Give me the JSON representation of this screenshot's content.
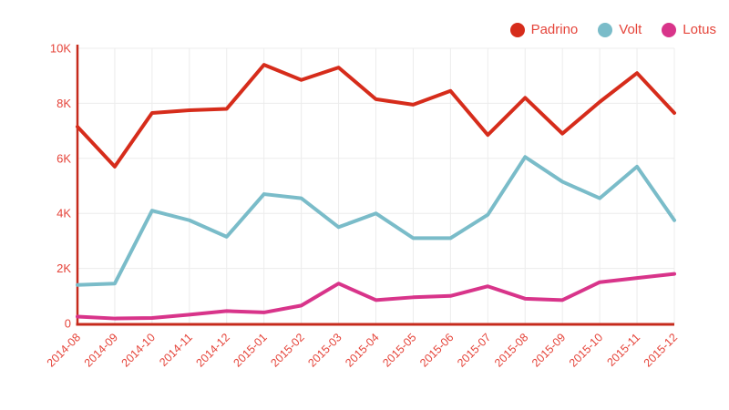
{
  "chart_data": {
    "type": "line",
    "title": "",
    "xlabel": "",
    "ylabel": "",
    "categories": [
      "2014-08",
      "2014-09",
      "2014-10",
      "2014-11",
      "2014-12",
      "2015-01",
      "2015-02",
      "2015-03",
      "2015-04",
      "2015-05",
      "2015-06",
      "2015-07",
      "2015-08",
      "2015-09",
      "2015-10",
      "2015-11",
      "2015-12"
    ],
    "series": [
      {
        "name": "Padrino",
        "color": "#d62c1b",
        "values": [
          7150,
          5700,
          7650,
          7750,
          7800,
          9400,
          8850,
          9300,
          8150,
          7950,
          8450,
          6850,
          8200,
          6900,
          8050,
          9100,
          7650
        ]
      },
      {
        "name": "Volt",
        "color": "#7abcc9",
        "values": [
          1400,
          1450,
          4100,
          3750,
          3150,
          4700,
          4550,
          3500,
          4000,
          3100,
          3100,
          3950,
          6050,
          5150,
          4550,
          5700,
          3750
        ]
      },
      {
        "name": "Lotus",
        "color": "#d8348a",
        "values": [
          250,
          180,
          200,
          320,
          450,
          400,
          650,
          1450,
          850,
          950,
          1000,
          1350,
          900,
          850,
          1500,
          1650,
          1800
        ]
      }
    ],
    "ylim": [
      0,
      10000
    ],
    "y_ticks": [
      {
        "value": 0,
        "label": "0"
      },
      {
        "value": 2000,
        "label": "2K"
      },
      {
        "value": 4000,
        "label": "4K"
      },
      {
        "value": 6000,
        "label": "6K"
      },
      {
        "value": 8000,
        "label": "8K"
      },
      {
        "value": 10000,
        "label": "10K"
      }
    ],
    "grid": true,
    "legend_position": "top-right",
    "styles": {
      "axis_color": "#c62a1c",
      "tick_label_color": "#e5443a",
      "legend_label_color": "#e5443a",
      "grid_color": "#ececec",
      "background": "#ffffff"
    }
  }
}
